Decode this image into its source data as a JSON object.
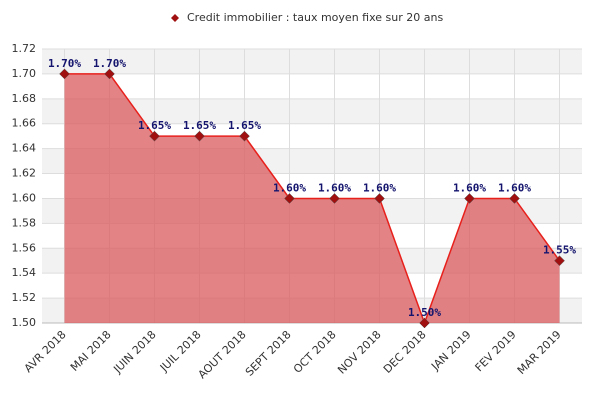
{
  "chart_data": {
    "type": "area",
    "categories": [
      "AVR 2018",
      "MAI 2018",
      "JUIN 2018",
      "JUIL 2018",
      "AOUT 2018",
      "SEPT 2018",
      "OCT 2018",
      "NOV 2018",
      "DEC 2018",
      "JAN 2019",
      "FEV 2019",
      "MAR 2019"
    ],
    "series": [
      {
        "name": "Credit immobilier : taux moyen fixe sur 20 ans",
        "color": "#e8201c",
        "fill": "#d9595c",
        "marker_color": "#a01010",
        "values": [
          1.7,
          1.7,
          1.65,
          1.65,
          1.65,
          1.6,
          1.6,
          1.6,
          1.5,
          1.6,
          1.6,
          1.55
        ],
        "value_labels": [
          "1.70%",
          "1.70%",
          "1.65%",
          "1.65%",
          "1.65%",
          "1.60%",
          "1.60%",
          "1.60%",
          "1.50%",
          "1.60%",
          "1.60%",
          "1.55%"
        ]
      }
    ],
    "ylim": [
      1.5,
      1.72
    ],
    "yticks": [
      {
        "value": 1.5,
        "label": "1.50"
      },
      1.52,
      1.54,
      1.56,
      1.58,
      {
        "value": 1.6,
        "label": "1.60"
      },
      1.62,
      1.64,
      1.66,
      1.68,
      {
        "value": 1.7,
        "label": "1.70"
      },
      1.72
    ],
    "grid": true,
    "legend": "top"
  }
}
